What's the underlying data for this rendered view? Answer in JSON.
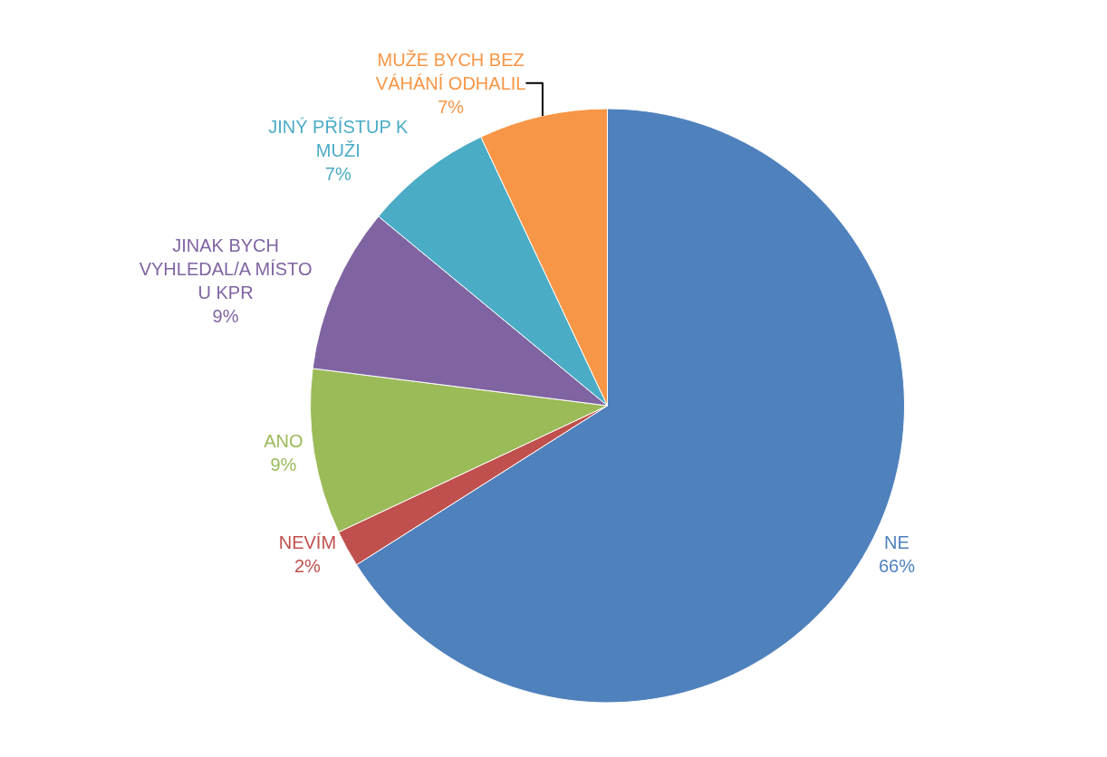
{
  "chart_data": {
    "type": "pie",
    "categories": [
      "NE",
      "NEVÍM",
      "ANO",
      "JINAK BYCH VYHLEDAL/A MÍSTO U KPR",
      "JINÝ PŘÍSTUP K MUŽI",
      "MUŽE BYCH BEZ VÁHÁNÍ ODHALIL"
    ],
    "values": [
      66,
      2,
      9,
      9,
      7,
      7
    ],
    "value_labels": [
      "66%",
      "2%",
      "9%",
      "9%",
      "7%",
      "7%"
    ],
    "colors": [
      "#4f81bd",
      "#c0504d",
      "#9bbb59",
      "#8064a2",
      "#4bacc6",
      "#f79646"
    ],
    "legend": false
  }
}
